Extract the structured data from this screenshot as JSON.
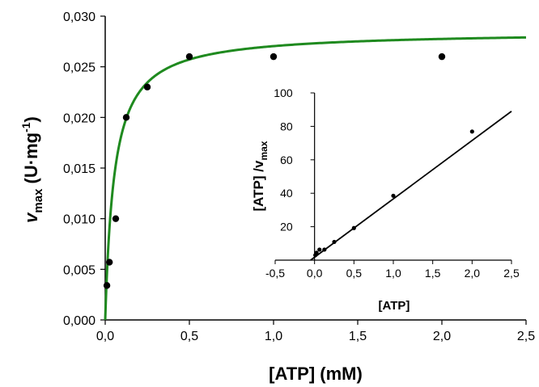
{
  "chart_data": [
    {
      "type": "line",
      "xlabel": "[ATP] (mM)",
      "ylabel": {
        "main": "v",
        "sub": "max",
        "unit_open": " (U·mg",
        "unit_sup": "-1",
        "unit_close": ")"
      },
      "xlim": [
        0,
        2.5
      ],
      "ylim": [
        0,
        0.03
      ],
      "x_ticks": [
        "0,0",
        "0,5",
        "1,0",
        "1,5",
        "2,0",
        "2,5"
      ],
      "x_tick_values": [
        0,
        0.5,
        1.0,
        1.5,
        2.0,
        2.5
      ],
      "y_ticks": [
        "0,000",
        "0,005",
        "0,010",
        "0,015",
        "0,020",
        "0,025",
        "0,030"
      ],
      "y_tick_values": [
        0,
        0.005,
        0.01,
        0.015,
        0.02,
        0.025,
        0.03
      ],
      "series": [
        {
          "kind": "scatter",
          "x": [
            0.01,
            0.025,
            0.0625,
            0.125,
            0.25,
            0.5,
            1.0,
            2.0
          ],
          "y": [
            0.0034,
            0.0057,
            0.01,
            0.02,
            0.023,
            0.026,
            0.026,
            0.026
          ]
        },
        {
          "kind": "fit",
          "model": "michaelis-menten",
          "vmax": 0.0285,
          "km": 0.054
        }
      ],
      "colors": {
        "fit": "#1f8a1f",
        "points": "#000000"
      }
    },
    {
      "type": "scatter",
      "inset": true,
      "xlabel": "[ATP]",
      "ylabel": {
        "main": "[ATP] /v",
        "sub": "max"
      },
      "xlim": [
        -0.5,
        2.5
      ],
      "ylim": [
        0,
        100
      ],
      "x_ticks": [
        "-0,5",
        "0,0",
        "0,5",
        "1,0",
        "1,5",
        "2,0",
        "2,5"
      ],
      "x_tick_values": [
        -0.5,
        0,
        0.5,
        1.0,
        1.5,
        2.0,
        2.5
      ],
      "y_ticks": [
        "20",
        "40",
        "60",
        "80",
        "100"
      ],
      "y_tick_values": [
        20,
        40,
        60,
        80,
        100
      ],
      "series": [
        {
          "kind": "scatter",
          "x": [
            0.01,
            0.025,
            0.0625,
            0.125,
            0.25,
            0.5,
            1.0,
            2.0
          ],
          "y": [
            3.0,
            4.4,
            6.3,
            6.3,
            10.9,
            19.2,
            38.5,
            76.9
          ]
        },
        {
          "kind": "line",
          "x": [
            -0.05,
            2.5
          ],
          "y": [
            0.0,
            89.0
          ]
        }
      ],
      "colors": {
        "line": "#000000",
        "points": "#000000"
      }
    }
  ]
}
